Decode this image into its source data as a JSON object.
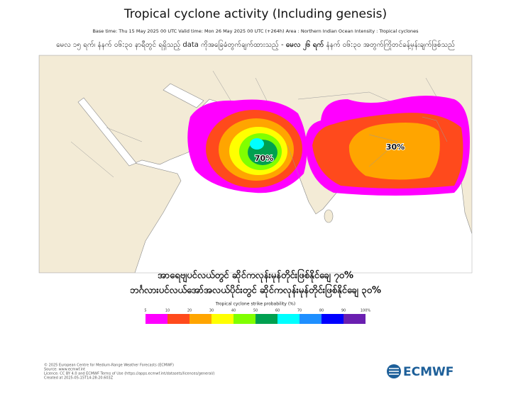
{
  "header": {
    "title": "Tropical cyclone activity (Including genesis)",
    "subtitle": "Base time: Thu 15 May 2025 00 UTC Valid time: Mon 26 May 2025 00 UTC (+264h) Area : Northern Indian Ocean Intensity : Tropical cyclones",
    "note_before": "မေလ ၁၅ ရက်၊ နံနက် ၀၆:၃၀ နာရီတွင် ရရှိသည့် data ကိုအခြေခံတွက်ချက်ထားသည့် -",
    "note_bold": "မေလ ၂၆ ရက်",
    "note_after": "နံနက် ၀၆:၃၀ အတွက်ကြိုတင်ခန့်မှန်းချက်ဖြစ်သည်"
  },
  "map": {
    "labels": [
      "70%",
      "30%"
    ]
  },
  "caption": [
    "အာရေဗျပင်လယ်တွင် ဆိုင်ကလုန်းမုန်တိုင်းဖြစ်နိုင်ချေ ၇၀%",
    "ဘင်္ဂလားပင်လယ်အော်အလယ်ပိုင်းတွင် ဆိုင်ကလုန်းမုန်တိုင်းဖြစ်နိုင်ချေ ၃၀%"
  ],
  "legend": {
    "title": "Tropical cyclone strike probability (%)",
    "labels": [
      "5",
      "10",
      "20",
      "30",
      "40",
      "50",
      "60",
      "70",
      "80",
      "90",
      "100%"
    ],
    "colors": [
      "#ff00ff",
      "#ff4a1c",
      "#ffa500",
      "#ffff00",
      "#80ff00",
      "#00a050",
      "#00ffff",
      "#1e8fff",
      "#0000ff",
      "#6a1fb0"
    ]
  },
  "footer": [
    "© 2025 European Centre for Medium-Range Weather Forecasts (ECMWF)",
    "Source: www.ecmwf.int",
    "Licence: CC BY 4.0 and ECMWF Terms of Use (https://apps.ecmwf.int/datasets/licences/general/)",
    "Created at 2025-05-15T14:28:20.603Z"
  ],
  "logo": "ECMWF"
}
